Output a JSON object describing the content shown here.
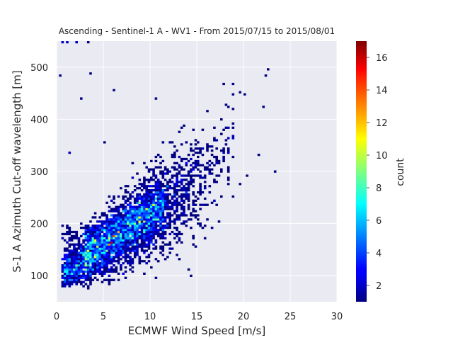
{
  "chart_data": {
    "type": "heatmap",
    "title": "Ascending - Sentinel-1 A - WV1 - From 2015/07/15 to 2015/08/01",
    "xlabel": "ECMWF Wind Speed [m/s]",
    "ylabel": "S-1 A Azimuth Cut-off wavelength [m]",
    "xlim": [
      0,
      30
    ],
    "ylim": [
      50,
      550
    ],
    "xticks": [
      "0",
      "5",
      "10",
      "15",
      "20",
      "25",
      "30"
    ],
    "yticks": [
      "100",
      "200",
      "300",
      "400",
      "500"
    ],
    "colorbar": {
      "label": "count",
      "range": [
        1,
        17
      ],
      "ticks": [
        "2",
        "4",
        "6",
        "8",
        "10",
        "12",
        "14",
        "16"
      ],
      "colormap": "jet"
    },
    "grid": true,
    "background_color": "#eaeaf2",
    "peak_bins": [
      {
        "x": 5.8,
        "y": 165,
        "count": 16
      },
      {
        "x": 6.1,
        "y": 175,
        "count": 14
      },
      {
        "x": 5.5,
        "y": 158,
        "count": 13
      },
      {
        "x": 6.6,
        "y": 185,
        "count": 12
      },
      {
        "x": 8.8,
        "y": 212,
        "count": 11
      },
      {
        "x": 9.3,
        "y": 205,
        "count": 10
      },
      {
        "x": 3.1,
        "y": 110,
        "count": 9
      },
      {
        "x": 7.5,
        "y": 200,
        "count": 9
      }
    ],
    "outlier_bins": [
      {
        "x": 0.5,
        "y": 548,
        "count": 2
      },
      {
        "x": 1.2,
        "y": 548,
        "count": 2
      },
      {
        "x": 2.2,
        "y": 548,
        "count": 2
      },
      {
        "x": 3.4,
        "y": 548,
        "count": 1
      },
      {
        "x": 0.4,
        "y": 482,
        "count": 1
      },
      {
        "x": 3.5,
        "y": 487,
        "count": 1
      },
      {
        "x": 6.0,
        "y": 455,
        "count": 1
      },
      {
        "x": 2.6,
        "y": 440,
        "count": 1
      },
      {
        "x": 1.4,
        "y": 335,
        "count": 2
      },
      {
        "x": 22.3,
        "y": 485,
        "count": 1
      },
      {
        "x": 22.7,
        "y": 495,
        "count": 1
      },
      {
        "x": 20.2,
        "y": 448,
        "count": 1
      },
      {
        "x": 19.6,
        "y": 452,
        "count": 1
      },
      {
        "x": 22.2,
        "y": 425,
        "count": 1
      },
      {
        "x": 21.5,
        "y": 332,
        "count": 1
      },
      {
        "x": 23.3,
        "y": 298,
        "count": 1
      },
      {
        "x": 20.3,
        "y": 292,
        "count": 1
      },
      {
        "x": 19.5,
        "y": 275,
        "count": 1
      },
      {
        "x": 18.8,
        "y": 252,
        "count": 1
      },
      {
        "x": 10.6,
        "y": 440,
        "count": 1
      },
      {
        "x": 5.1,
        "y": 355,
        "count": 1
      }
    ]
  }
}
